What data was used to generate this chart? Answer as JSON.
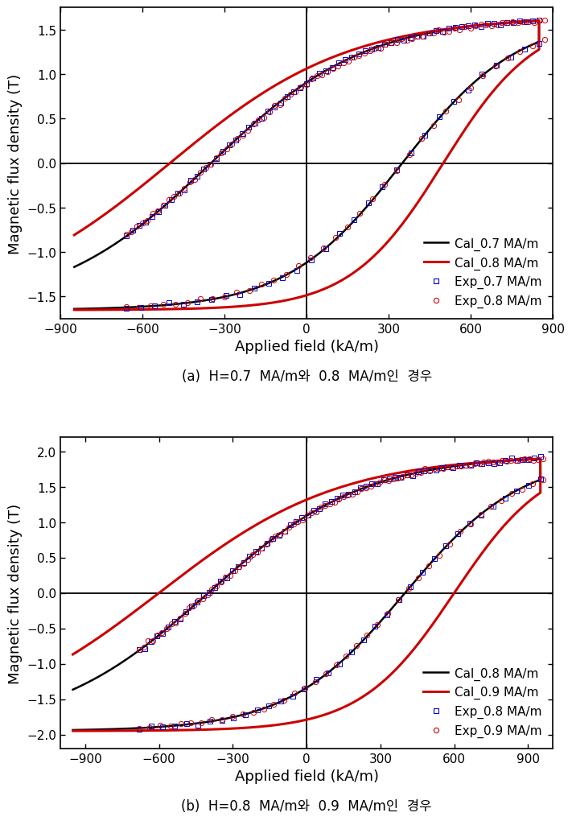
{
  "subplot_a": {
    "title": "(a)  H=0.7  MA/m와  0.8  MA/m인  경우",
    "xlabel": "Applied field (kA/m)",
    "ylabel": "Magnetic flux density (T)",
    "xlim": [
      -900,
      900
    ],
    "ylim": [
      -1.75,
      1.75
    ],
    "xticks": [
      -900,
      -600,
      -300,
      0,
      300,
      600,
      900
    ],
    "yticks": [
      -1.5,
      -1.0,
      -0.5,
      0.0,
      0.5,
      1.0,
      1.5
    ],
    "legend": [
      "Cal_0.7 MA/m",
      "Cal_0.8 MA/m",
      "Exp_0.7 MA/m",
      "Exp_0.8 MA/m"
    ],
    "cal07_color": "#000000",
    "cal08_color": "#cc0000",
    "exp07_color": "#0000cc",
    "exp08_color": "#cc0000"
  },
  "subplot_b": {
    "title": "(b)  H=0.8  MA/m와  0.9  MA/m인  경우",
    "xlabel": "Applied field (kA/m)",
    "ylabel": "Magnetic flux density (T)",
    "xlim": [
      -1000,
      1000
    ],
    "ylim": [
      -2.2,
      2.2
    ],
    "xticks": [
      -900,
      -600,
      -300,
      0,
      300,
      600,
      900
    ],
    "yticks": [
      -2.0,
      -1.5,
      -1.0,
      -0.5,
      0.0,
      0.5,
      1.0,
      1.5,
      2.0
    ],
    "legend": [
      "Cal_0.8 MA/m",
      "Cal_0.9 MA/m",
      "Exp_0.8 MA/m",
      "Exp_0.9 MA/m"
    ],
    "cal08_color": "#000000",
    "cal09_color": "#cc0000",
    "exp08_color": "#0000cc",
    "exp09_color": "#cc0000"
  }
}
